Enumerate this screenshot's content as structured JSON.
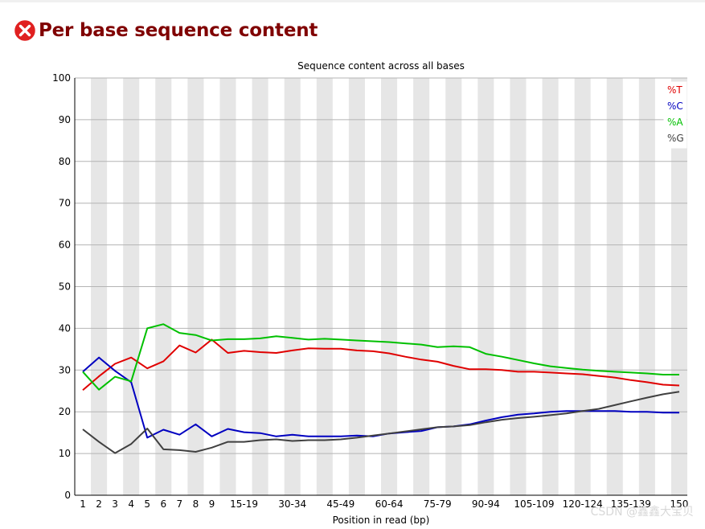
{
  "page": {
    "title": "Per base sequence content",
    "status_icon": "error-x-circle-icon",
    "status_color": "#e02020",
    "title_color": "#800000",
    "watermark": "CSDN @鑫鑫大宝贝"
  },
  "chart_data": {
    "type": "line",
    "title": "Sequence content across all bases",
    "xlabel": "Position in read (bp)",
    "ylabel": "",
    "ylim": [
      0,
      100
    ],
    "yticks": [
      0,
      10,
      20,
      30,
      40,
      50,
      60,
      70,
      80,
      90,
      100
    ],
    "grid": true,
    "alternating_bands": true,
    "legend_position": "top-right",
    "categories": [
      "1",
      "2",
      "3",
      "4",
      "5",
      "6",
      "7",
      "8",
      "9",
      "10-14",
      "15-19",
      "20-24",
      "25-29",
      "30-34",
      "35-39",
      "40-44",
      "45-49",
      "50-54",
      "55-59",
      "60-64",
      "65-69",
      "70-74",
      "75-79",
      "80-84",
      "85-89",
      "90-94",
      "95-99",
      "100-104",
      "105-109",
      "110-114",
      "115-119",
      "120-124",
      "125-129",
      "130-134",
      "135-139",
      "140-144",
      "145-149",
      "150"
    ],
    "category_labels_shown": [
      "1",
      "2",
      "3",
      "4",
      "5",
      "6",
      "7",
      "8",
      "9",
      "15-19",
      "30-34",
      "45-49",
      "60-64",
      "75-79",
      "90-94",
      "105-109",
      "120-124",
      "135-139",
      "150"
    ],
    "series": [
      {
        "name": "%T",
        "color": "#e00000",
        "values": [
          25.2,
          28.5,
          31.5,
          33.0,
          30.4,
          32.1,
          35.9,
          34.2,
          37.3,
          34.1,
          34.6,
          34.3,
          34.1,
          34.7,
          35.2,
          35.1,
          35.1,
          34.7,
          34.5,
          34.0,
          33.2,
          32.5,
          32.0,
          31.0,
          30.2,
          30.2,
          30.0,
          29.6,
          29.6,
          29.4,
          29.2,
          29.0,
          28.6,
          28.2,
          27.6,
          27.1,
          26.5,
          26.3
        ]
      },
      {
        "name": "%C",
        "color": "#0000c0",
        "values": [
          29.6,
          33.0,
          29.8,
          27.1,
          13.8,
          15.7,
          14.5,
          17.0,
          14.1,
          15.9,
          15.1,
          14.9,
          14.1,
          14.5,
          14.1,
          14.1,
          14.1,
          14.3,
          14.1,
          14.8,
          15.1,
          15.4,
          16.3,
          16.5,
          17.0,
          17.9,
          18.7,
          19.3,
          19.6,
          20.0,
          20.2,
          20.2,
          20.2,
          20.2,
          20.0,
          20.0,
          19.8,
          19.8
        ]
      },
      {
        "name": "%A",
        "color": "#00c000",
        "values": [
          29.6,
          25.3,
          28.4,
          27.3,
          40.0,
          41.0,
          38.9,
          38.4,
          37.1,
          37.4,
          37.4,
          37.6,
          38.1,
          37.7,
          37.3,
          37.5,
          37.3,
          37.1,
          36.9,
          36.7,
          36.4,
          36.1,
          35.5,
          35.7,
          35.5,
          33.9,
          33.2,
          32.4,
          31.6,
          30.9,
          30.5,
          30.1,
          29.8,
          29.6,
          29.4,
          29.2,
          28.9,
          28.9
        ]
      },
      {
        "name": "%G",
        "color": "#404040",
        "values": [
          15.8,
          12.8,
          10.1,
          12.3,
          16.0,
          11.0,
          10.8,
          10.4,
          11.4,
          12.8,
          12.8,
          13.2,
          13.4,
          13.0,
          13.2,
          13.2,
          13.4,
          13.8,
          14.3,
          14.8,
          15.3,
          15.8,
          16.3,
          16.5,
          16.8,
          17.5,
          18.1,
          18.5,
          18.8,
          19.2,
          19.6,
          20.2,
          20.7,
          21.6,
          22.5,
          23.4,
          24.2,
          24.8
        ]
      }
    ]
  }
}
